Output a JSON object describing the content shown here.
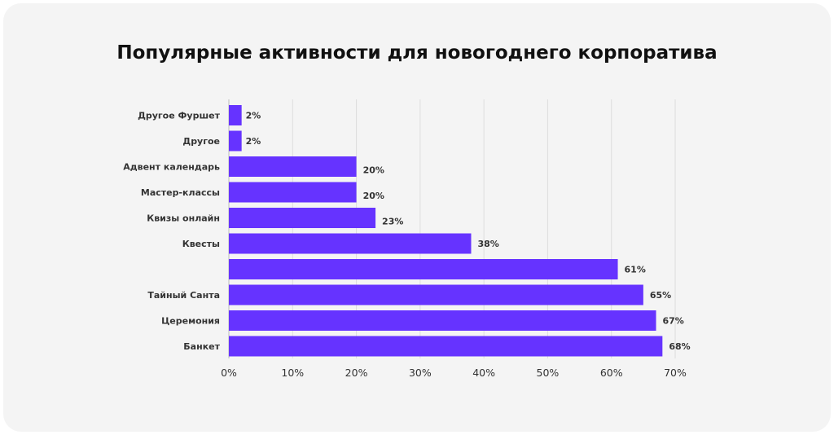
{
  "chart_data": {
    "type": "bar",
    "orientation": "horizontal",
    "title": "Популярные активности для новогоднего корпоратива",
    "categories": [
      "Другое Фуршет",
      "Другое",
      "Адвент календарь",
      "Мастер-классы",
      "Квизы онлайн",
      "Квесты",
      "",
      "Тайный Санта",
      "Церемония",
      "Банкет"
    ],
    "values": [
      2,
      2,
      20,
      20,
      23,
      38,
      61,
      65,
      67,
      68
    ],
    "value_labels": [
      "2%",
      "2%",
      "20%",
      "20%",
      "23%",
      "38%",
      "61%",
      "65%",
      "67%",
      "68%"
    ],
    "xlim": [
      0,
      70
    ],
    "xticks": [
      "0%",
      "10%",
      "20%",
      "30%",
      "40%",
      "50%",
      "60%",
      "70%"
    ],
    "xlabel": "",
    "ylabel": "",
    "grid": true,
    "colors": {
      "bar": "#6633ff"
    }
  }
}
